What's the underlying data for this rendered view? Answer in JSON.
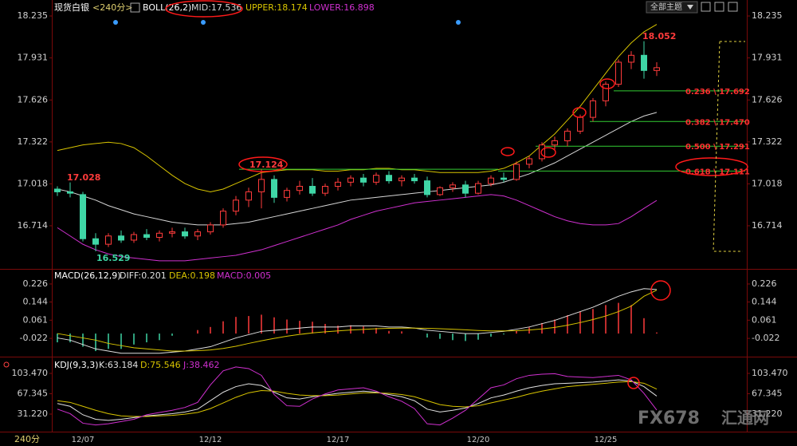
{
  "header": {
    "symbol": "现货白银",
    "period": "<240分>",
    "theme": "全部主题",
    "period_button": "240分",
    "watermark": "FX678",
    "watermark_cn": "汇通网"
  },
  "chart_data": [
    {
      "type": "candlestick",
      "indicator": "BOLL(26,2)",
      "categories": [
        null,
        null,
        "12/07",
        null,
        null,
        null,
        null,
        null,
        null,
        null,
        null,
        null,
        "12/12",
        null,
        null,
        null,
        null,
        null,
        null,
        null,
        null,
        null,
        "12/17",
        null,
        null,
        null,
        null,
        null,
        null,
        null,
        null,
        null,
        null,
        "12/20",
        null,
        null,
        null,
        null,
        null,
        null,
        null,
        null,
        null,
        "12/25",
        null,
        null,
        null,
        null
      ],
      "open": [
        16.98,
        16.96,
        16.94,
        16.62,
        16.58,
        16.64,
        16.61,
        16.65,
        16.63,
        16.66,
        16.67,
        16.64,
        16.67,
        16.72,
        16.82,
        16.9,
        16.96,
        17.05,
        16.92,
        16.97,
        17.0,
        16.95,
        17.0,
        17.03,
        17.06,
        17.03,
        17.08,
        17.04,
        17.06,
        17.04,
        16.94,
        16.99,
        17.01,
        16.95,
        17.02,
        17.06,
        17.05,
        17.16,
        17.2,
        17.3,
        17.33,
        17.4,
        17.5,
        17.62,
        17.74,
        17.9,
        17.95,
        17.84
      ],
      "high": [
        17.0,
        17.028,
        16.96,
        16.66,
        16.66,
        16.68,
        16.67,
        16.69,
        16.68,
        16.7,
        16.7,
        16.69,
        16.74,
        16.84,
        16.93,
        16.99,
        17.124,
        17.08,
        16.99,
        17.04,
        17.06,
        17.02,
        17.06,
        17.08,
        17.09,
        17.1,
        17.11,
        17.08,
        17.09,
        17.07,
        17.0,
        17.03,
        17.04,
        17.04,
        17.08,
        17.1,
        17.18,
        17.22,
        17.32,
        17.36,
        17.42,
        17.52,
        17.64,
        17.76,
        17.92,
        17.98,
        18.052,
        17.9
      ],
      "low": [
        16.93,
        16.92,
        16.6,
        16.529,
        16.56,
        16.59,
        16.59,
        16.61,
        16.6,
        16.63,
        16.62,
        16.61,
        16.65,
        16.7,
        16.79,
        16.85,
        16.84,
        16.88,
        16.89,
        16.94,
        16.93,
        16.93,
        16.97,
        17.0,
        17.0,
        17.01,
        17.02,
        17.0,
        17.02,
        16.92,
        16.93,
        16.96,
        16.92,
        16.94,
        17.0,
        17.03,
        17.04,
        17.13,
        17.18,
        17.26,
        17.29,
        17.38,
        17.47,
        17.58,
        17.72,
        17.85,
        17.78,
        17.8
      ],
      "close": [
        16.96,
        16.95,
        16.62,
        16.58,
        16.64,
        16.61,
        16.65,
        16.63,
        16.66,
        16.67,
        16.64,
        16.67,
        16.72,
        16.82,
        16.9,
        16.96,
        17.05,
        16.92,
        16.97,
        17.0,
        16.95,
        17.0,
        17.03,
        17.06,
        17.03,
        17.08,
        17.04,
        17.06,
        17.04,
        16.94,
        16.99,
        17.01,
        16.95,
        17.02,
        17.06,
        17.05,
        17.16,
        17.2,
        17.3,
        17.33,
        17.4,
        17.5,
        17.62,
        17.74,
        17.9,
        17.95,
        17.84,
        17.86
      ],
      "up_color": "#ff3b3b",
      "down_color": "#3fd6a6",
      "series": [
        {
          "name": "MID:17.536",
          "color": "#d6d6d6",
          "values": [
            16.98,
            16.96,
            16.93,
            16.9,
            16.86,
            16.83,
            16.8,
            16.78,
            16.76,
            16.74,
            16.73,
            16.72,
            16.72,
            16.72,
            16.73,
            16.74,
            16.76,
            16.78,
            16.8,
            16.82,
            16.84,
            16.86,
            16.88,
            16.9,
            16.91,
            16.92,
            16.93,
            16.94,
            16.95,
            16.96,
            16.97,
            16.98,
            16.99,
            17.0,
            17.01,
            17.03,
            17.06,
            17.09,
            17.13,
            17.17,
            17.22,
            17.27,
            17.32,
            17.37,
            17.42,
            17.47,
            17.51,
            17.536
          ]
        },
        {
          "name": "UPPER:18.174",
          "color": "#d8c400",
          "values": [
            17.26,
            17.28,
            17.3,
            17.31,
            17.32,
            17.31,
            17.28,
            17.22,
            17.15,
            17.08,
            17.02,
            16.98,
            16.96,
            16.98,
            17.02,
            17.06,
            17.1,
            17.11,
            17.12,
            17.12,
            17.12,
            17.11,
            17.11,
            17.12,
            17.12,
            17.13,
            17.13,
            17.12,
            17.12,
            17.11,
            17.1,
            17.1,
            17.1,
            17.1,
            17.11,
            17.13,
            17.17,
            17.22,
            17.3,
            17.38,
            17.48,
            17.58,
            17.7,
            17.82,
            17.94,
            18.04,
            18.12,
            18.174
          ]
        },
        {
          "name": "LOWER:16.898",
          "color": "#d030d0",
          "values": [
            16.7,
            16.64,
            16.58,
            16.54,
            16.51,
            16.49,
            16.48,
            16.47,
            16.46,
            16.46,
            16.46,
            16.47,
            16.48,
            16.49,
            16.5,
            16.52,
            16.54,
            16.57,
            16.6,
            16.63,
            16.66,
            16.69,
            16.72,
            16.76,
            16.79,
            16.82,
            16.84,
            16.86,
            16.88,
            16.89,
            16.9,
            16.91,
            16.92,
            16.93,
            16.94,
            16.93,
            16.9,
            16.86,
            16.82,
            16.78,
            16.75,
            16.73,
            16.72,
            16.72,
            16.73,
            16.78,
            16.84,
            16.898
          ]
        }
      ],
      "ylim": [
        16.413,
        18.293
      ],
      "yticks": [
        18.235,
        17.931,
        17.626,
        17.322,
        17.018,
        16.714
      ],
      "annotations": [
        18.052,
        17.028,
        16.529,
        17.124
      ],
      "fib_levels": [
        {
          "label": "0.236 \\ 17.692",
          "value": 17.692
        },
        {
          "label": "0.382 \\ 17.470",
          "value": 17.47
        },
        {
          "label": "0.500 \\ 17.291",
          "value": 17.291
        },
        {
          "label": "0.618 \\ 17.111",
          "value": 17.111
        }
      ],
      "fib_color": "#33cc33",
      "fib_label_color": "#ff3030"
    },
    {
      "type": "macd",
      "title": "MACD(26,12,9)",
      "series": [
        {
          "name": "DIFF:0.201",
          "color": "#e0e0e0",
          "values": [
            -0.02,
            -0.03,
            -0.05,
            -0.07,
            -0.08,
            -0.09,
            -0.09,
            -0.09,
            -0.09,
            -0.085,
            -0.08,
            -0.07,
            -0.06,
            -0.04,
            -0.02,
            -0.005,
            0.01,
            0.015,
            0.02,
            0.025,
            0.03,
            0.03,
            0.03,
            0.035,
            0.035,
            0.035,
            0.03,
            0.03,
            0.025,
            0.015,
            0.01,
            0.005,
            0.0,
            0.0,
            0.005,
            0.01,
            0.02,
            0.03,
            0.045,
            0.06,
            0.08,
            0.1,
            0.12,
            0.145,
            0.17,
            0.19,
            0.205,
            0.201
          ]
        },
        {
          "name": "DEA:0.198",
          "color": "#d8c400",
          "values": [
            0.0,
            -0.01,
            -0.02,
            -0.03,
            -0.045,
            -0.055,
            -0.065,
            -0.07,
            -0.075,
            -0.08,
            -0.08,
            -0.078,
            -0.075,
            -0.068,
            -0.058,
            -0.045,
            -0.033,
            -0.022,
            -0.012,
            -0.004,
            0.003,
            0.008,
            0.012,
            0.016,
            0.019,
            0.022,
            0.024,
            0.025,
            0.025,
            0.024,
            0.022,
            0.02,
            0.017,
            0.014,
            0.012,
            0.012,
            0.013,
            0.016,
            0.021,
            0.028,
            0.038,
            0.05,
            0.064,
            0.08,
            0.1,
            0.125,
            0.17,
            0.198
          ]
        }
      ],
      "bars": {
        "name": "MACD:0.005",
        "color": "#d030d0",
        "up_color": "#ff3b3b",
        "down_color": "#3fd6a6",
        "values": [
          -0.04,
          -0.04,
          -0.06,
          -0.08,
          -0.07,
          -0.07,
          -0.05,
          -0.04,
          -0.03,
          -0.01,
          0.0,
          0.016,
          0.03,
          0.056,
          0.076,
          0.08,
          0.086,
          0.074,
          0.064,
          0.058,
          0.054,
          0.044,
          0.036,
          0.038,
          0.032,
          0.026,
          0.012,
          0.01,
          0.0,
          -0.018,
          -0.024,
          -0.03,
          -0.034,
          -0.028,
          -0.014,
          -0.004,
          0.014,
          0.028,
          0.048,
          0.064,
          0.084,
          0.1,
          0.112,
          0.13,
          0.14,
          0.13,
          0.07,
          0.005
        ]
      },
      "ylim": [
        -0.098,
        0.284
      ],
      "yticks": [
        0.226,
        0.144,
        0.061,
        -0.022
      ]
    },
    {
      "type": "line",
      "title": "KDJ(9,3,3)",
      "series": [
        {
          "name": "K:63.184",
          "color": "#e0e0e0",
          "values": [
            50,
            45,
            30,
            22,
            20,
            22,
            25,
            28,
            30,
            32,
            35,
            40,
            55,
            70,
            80,
            85,
            82,
            70,
            60,
            58,
            62,
            65,
            68,
            70,
            72,
            70,
            66,
            62,
            55,
            40,
            35,
            38,
            42,
            50,
            60,
            65,
            72,
            78,
            82,
            85,
            86,
            87,
            88,
            90,
            92,
            90,
            80,
            63.184
          ]
        },
        {
          "name": "D:75.546",
          "color": "#d8c400",
          "values": [
            55,
            52,
            45,
            38,
            32,
            28,
            27,
            27,
            28,
            29,
            31,
            34,
            41,
            51,
            61,
            69,
            73,
            72,
            68,
            65,
            64,
            64,
            65,
            67,
            69,
            69,
            68,
            66,
            62,
            55,
            48,
            45,
            44,
            46,
            51,
            56,
            61,
            67,
            72,
            76,
            80,
            82,
            84,
            86,
            88,
            89,
            86,
            75.546
          ]
        },
        {
          "name": "J:38.462",
          "color": "#d030d0",
          "values": [
            40,
            32,
            15,
            12,
            14,
            18,
            22,
            30,
            34,
            38,
            43,
            52,
            83,
            108,
            115,
            112,
            100,
            66,
            46,
            45,
            58,
            67,
            74,
            76,
            78,
            72,
            62,
            54,
            41,
            14,
            12,
            24,
            38,
            58,
            78,
            83,
            94,
            100,
            102,
            103,
            98,
            97,
            96,
            98,
            100,
            92,
            68,
            38.462
          ]
        }
      ],
      "ylim": [
        1.47,
        128.97
      ],
      "yticks": [
        {
          "value": 103.47,
          "label": "103.470"
        },
        67.345,
        {
          "value": 31.22,
          "label": "31.220"
        }
      ]
    }
  ]
}
